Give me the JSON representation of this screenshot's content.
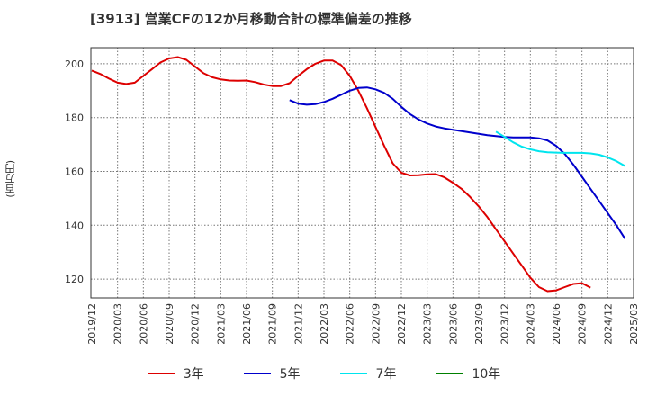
{
  "chart_data": {
    "type": "line",
    "title": "[3913]  営業CFの12か月移動合計の標準偏差の推移",
    "ylabel": "(百万円)",
    "xlabel": "",
    "ylim": [
      113,
      206
    ],
    "yticks": [
      120,
      140,
      160,
      180,
      200
    ],
    "xticks": [
      "2019/12",
      "2020/03",
      "2020/06",
      "2020/09",
      "2020/12",
      "2021/03",
      "2021/06",
      "2021/09",
      "2021/12",
      "2022/03",
      "2022/06",
      "2022/09",
      "2022/12",
      "2023/03",
      "2023/06",
      "2023/09",
      "2023/12",
      "2024/03",
      "2024/06",
      "2024/09",
      "2024/12",
      "2025/03"
    ],
    "grid": true,
    "legend_position": "bottom",
    "series": [
      {
        "name": "3年",
        "color": "#dd0000",
        "start": "2019/12",
        "values": [
          197.5,
          196.2,
          194.5,
          193.0,
          192.5,
          193.0,
          195.5,
          198.0,
          200.5,
          202.0,
          202.5,
          201.5,
          199.0,
          196.5,
          195.0,
          194.2,
          193.8,
          193.7,
          193.8,
          193.2,
          192.3,
          191.7,
          191.7,
          192.8,
          195.5,
          198.0,
          200.0,
          201.2,
          201.2,
          199.5,
          195.5,
          190.0,
          183.5,
          176.5,
          169.5,
          163.0,
          159.5,
          158.5,
          158.6,
          158.9,
          159.0,
          157.8,
          155.8,
          153.5,
          150.5,
          147.0,
          143.0,
          138.5,
          134.0,
          129.5,
          125.0,
          120.5,
          117.0,
          115.5,
          115.8,
          117.0,
          118.2,
          118.5,
          116.8
        ]
      },
      {
        "name": "5年",
        "color": "#0000cc",
        "start": "2021/11",
        "values": [
          186.5,
          185.2,
          184.8,
          185.0,
          185.8,
          187.0,
          188.5,
          190.0,
          191.0,
          191.2,
          190.5,
          189.2,
          187.0,
          184.0,
          181.3,
          179.3,
          177.8,
          176.7,
          176.0,
          175.5,
          175.0,
          174.5,
          174.0,
          173.5,
          173.1,
          172.8,
          172.6,
          172.6,
          172.6,
          172.3,
          171.5,
          169.5,
          166.5,
          162.5,
          158.0,
          153.5,
          149.0,
          144.5,
          140.0,
          135.0
        ]
      },
      {
        "name": "7年",
        "color": "#00e5ee",
        "start": "2023/11",
        "values": [
          174.8,
          172.8,
          170.8,
          169.2,
          168.2,
          167.5,
          167.1,
          167.0,
          166.9,
          166.9,
          166.9,
          166.7,
          166.2,
          165.2,
          163.8,
          162.0
        ]
      },
      {
        "name": "10年",
        "color": "#008000",
        "start": "2023/11",
        "values": []
      }
    ]
  }
}
